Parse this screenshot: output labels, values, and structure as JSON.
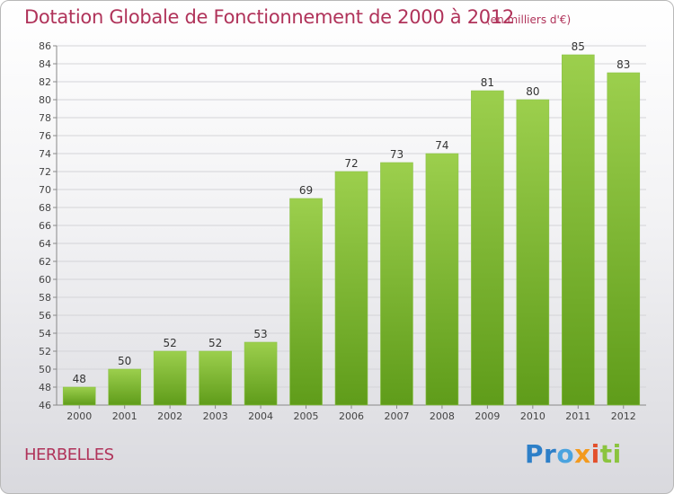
{
  "title": "Dotation Globale de Fonctionnement de 2000 à 2012",
  "subtitle": "(en milliers d'€)",
  "commune": "HERBELLES",
  "logo": {
    "text": "Proxiti",
    "letters": [
      "P",
      "r",
      "o",
      "x",
      "i",
      "t",
      "i"
    ]
  },
  "colors": {
    "title": "#b0335a",
    "bar_top": "#9ccf4d",
    "bar_bottom": "#5f9c1a"
  },
  "chart_data": {
    "type": "bar",
    "title": "Dotation Globale de Fonctionnement de 2000 à 2012",
    "subtitle": "(en milliers d'€)",
    "xlabel": "",
    "ylabel": "",
    "categories": [
      "2000",
      "2001",
      "2002",
      "2003",
      "2004",
      "2005",
      "2006",
      "2007",
      "2008",
      "2009",
      "2010",
      "2011",
      "2012"
    ],
    "values": [
      48,
      50,
      52,
      52,
      53,
      69,
      72,
      73,
      74,
      81,
      80,
      85,
      83
    ],
    "ylim": [
      46,
      86
    ],
    "yticks": [
      46,
      48,
      50,
      52,
      54,
      56,
      58,
      60,
      62,
      64,
      66,
      68,
      70,
      72,
      74,
      76,
      78,
      80,
      82,
      84,
      86
    ],
    "grid": true,
    "data_labels": true
  }
}
